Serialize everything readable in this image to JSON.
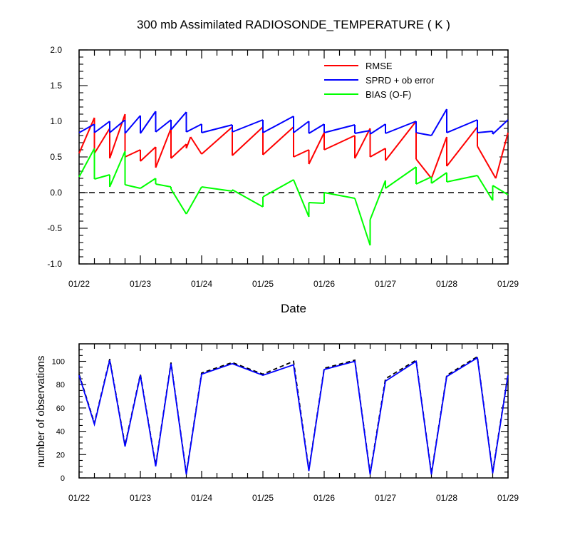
{
  "chart_data": [
    {
      "type": "line",
      "title": "300 mb Assimilated RADIOSONDE_TEMPERATURE ( K )",
      "xlabel": "Date",
      "ylabel": "",
      "ylim": [
        -1.0,
        2.0
      ],
      "xlim": [
        0,
        7
      ],
      "x_tick_labels": [
        "01/22",
        "01/23",
        "01/24",
        "01/25",
        "01/26",
        "01/27",
        "01/28",
        "01/29"
      ],
      "y_tick_labels": [
        "-1.0",
        "-0.5",
        "0.0",
        "0.5",
        "1.0",
        "1.5",
        "2.0"
      ],
      "legend_position": "top-right",
      "reference_line": {
        "y": 0,
        "style": "dashed"
      },
      "colors": {
        "rmse": "#ff0000",
        "sprd": "#0000ff",
        "bias": "#00ff00"
      },
      "series": [
        {
          "name": "RMSE",
          "color": "#ff0000",
          "points": [
            [
              0,
              0.55
            ],
            [
              0.25,
              0.8
            ],
            [
              0.25,
              0.5
            ],
            [
              0.5,
              0.9
            ],
            [
              0.5,
              0.48
            ],
            [
              0.75,
              0.8
            ],
            [
              0.75,
              0.5
            ],
            [
              1,
              0.6
            ],
            [
              1,
              0.44
            ],
            [
              1.25,
              0.5
            ],
            [
              1.25,
              0.35
            ],
            [
              1.5,
              0.6
            ],
            [
              1.5,
              0.5
            ],
            [
              1.75,
              0.65
            ],
            [
              1.75,
              0.5
            ],
            [
              2,
              0.55
            ],
            [
              2,
              0.55
            ],
            [
              2.5,
              0.52
            ],
            [
              2.5,
              0.52
            ],
            [
              3,
              0.53
            ],
            [
              3,
              0.53
            ],
            [
              3.5,
              0.52
            ],
            [
              3.5,
              0.52
            ],
            [
              3.75,
              0.4
            ],
            [
              3.75,
              0.4
            ],
            [
              4,
              0.6
            ],
            [
              4,
              0.6
            ],
            [
              4.5,
              0.5
            ],
            [
              4.5,
              0.5
            ],
            [
              4.75,
              0.5
            ],
            [
              4.75,
              0.5
            ],
            [
              5,
              0.45
            ],
            [
              5,
              0.45
            ],
            [
              5.5,
              0.48
            ],
            [
              5.5,
              0.48
            ],
            [
              5.75,
              0.2
            ],
            [
              5.75,
              0.2
            ],
            [
              6,
              0.38
            ],
            [
              6,
              0.38
            ],
            [
              6.5,
              0.65
            ],
            [
              6.5,
              0.65
            ],
            [
              6.75,
              0.2
            ],
            [
              6.75,
              0.2
            ],
            [
              7,
              0.85
            ]
          ],
          "segments": [
            [
              [
                0,
                0.55
              ],
              [
                0.25,
                1.05
              ]
            ],
            [
              [
                0.25,
                0.55
              ],
              [
                0.5,
                0.9
              ]
            ],
            [
              [
                0.5,
                0.48
              ],
              [
                0.75,
                1.1
              ]
            ],
            [
              [
                0.75,
                0.5
              ],
              [
                1,
                0.6
              ]
            ],
            [
              [
                1,
                0.44
              ],
              [
                1.25,
                0.64
              ]
            ],
            [
              [
                1.25,
                0.35
              ],
              [
                1.5,
                0.9
              ]
            ],
            [
              [
                1.5,
                0.48
              ],
              [
                1.75,
                0.68
              ]
            ],
            [
              [
                1.75,
                0.62
              ],
              [
                1.82,
                0.78
              ]
            ],
            [
              [
                2,
                0.54
              ],
              [
                2.5,
                0.92
              ]
            ],
            [
              [
                2.5,
                0.52
              ],
              [
                3,
                0.92
              ]
            ],
            [
              [
                3,
                0.53
              ],
              [
                3.5,
                0.92
              ]
            ],
            [
              [
                3.5,
                0.5
              ],
              [
                3.75,
                0.6
              ]
            ],
            [
              [
                3.75,
                0.4
              ],
              [
                4,
                0.84
              ]
            ],
            [
              [
                4,
                0.6
              ],
              [
                4.5,
                0.8
              ]
            ],
            [
              [
                4.5,
                0.48
              ],
              [
                4.75,
                0.9
              ]
            ],
            [
              [
                4.75,
                0.5
              ],
              [
                5,
                0.62
              ]
            ],
            [
              [
                5,
                0.45
              ],
              [
                5.5,
                1.0
              ]
            ],
            [
              [
                5.5,
                0.47
              ],
              [
                5.75,
                0.2
              ]
            ],
            [
              [
                5.75,
                0.2
              ],
              [
                6,
                0.78
              ]
            ],
            [
              [
                6,
                0.37
              ],
              [
                6.5,
                0.92
              ]
            ],
            [
              [
                6.5,
                0.65
              ],
              [
                6.8,
                0.2
              ]
            ],
            [
              [
                6.8,
                0.2
              ],
              [
                7,
                0.84
              ]
            ]
          ]
        },
        {
          "name": "SPRD + ob error",
          "color": "#0000ff",
          "segments": [
            [
              [
                0,
                0.84
              ],
              [
                0.25,
                0.96
              ]
            ],
            [
              [
                0.25,
                0.84
              ],
              [
                0.5,
                1.0
              ]
            ],
            [
              [
                0.5,
                0.84
              ],
              [
                0.75,
                1.02
              ]
            ],
            [
              [
                0.75,
                0.83
              ],
              [
                1,
                1.08
              ]
            ],
            [
              [
                1,
                0.83
              ],
              [
                1.25,
                1.14
              ]
            ],
            [
              [
                1.25,
                0.85
              ],
              [
                1.5,
                1.02
              ]
            ],
            [
              [
                1.5,
                0.88
              ],
              [
                1.75,
                1.13
              ]
            ],
            [
              [
                1.75,
                0.85
              ],
              [
                2,
                0.96
              ]
            ],
            [
              [
                2,
                0.84
              ],
              [
                2.5,
                0.95
              ]
            ],
            [
              [
                2.5,
                0.85
              ],
              [
                3,
                1.02
              ]
            ],
            [
              [
                3,
                0.84
              ],
              [
                3.5,
                1.07
              ]
            ],
            [
              [
                3.5,
                0.84
              ],
              [
                3.75,
                1.0
              ]
            ],
            [
              [
                3.75,
                0.83
              ],
              [
                4,
                0.96
              ]
            ],
            [
              [
                4,
                0.84
              ],
              [
                4.5,
                0.95
              ]
            ],
            [
              [
                4.5,
                0.83
              ],
              [
                4.75,
                0.87
              ]
            ],
            [
              [
                4.75,
                0.82
              ],
              [
                5,
                0.96
              ]
            ],
            [
              [
                5,
                0.83
              ],
              [
                5.5,
                1.0
              ]
            ],
            [
              [
                5.5,
                0.84
              ],
              [
                5.75,
                0.8
              ]
            ],
            [
              [
                5.75,
                0.8
              ],
              [
                6,
                1.17
              ]
            ],
            [
              [
                6,
                0.84
              ],
              [
                6.5,
                1.02
              ]
            ],
            [
              [
                6.5,
                0.84
              ],
              [
                6.75,
                0.86
              ]
            ],
            [
              [
                6.75,
                0.82
              ],
              [
                7,
                1.02
              ]
            ]
          ]
        },
        {
          "name": "BIAS (O-F)",
          "color": "#00ff00",
          "segments": [
            [
              [
                0,
                0.22
              ],
              [
                0.25,
                0.62
              ]
            ],
            [
              [
                0.25,
                0.19
              ],
              [
                0.5,
                0.25
              ]
            ],
            [
              [
                0.5,
                0.08
              ],
              [
                0.75,
                0.58
              ]
            ],
            [
              [
                0.75,
                0.11
              ],
              [
                1,
                0.06
              ]
            ],
            [
              [
                1,
                0.06
              ],
              [
                1.25,
                0.2
              ]
            ],
            [
              [
                1.25,
                0.12
              ],
              [
                1.5,
                0.08
              ]
            ],
            [
              [
                1.5,
                0.05
              ],
              [
                1.75,
                -0.3
              ]
            ],
            [
              [
                1.75,
                -0.3
              ],
              [
                2,
                0.08
              ]
            ],
            [
              [
                2,
                0.08
              ],
              [
                2.5,
                0.02
              ]
            ],
            [
              [
                2.5,
                0.04
              ],
              [
                3,
                -0.2
              ]
            ],
            [
              [
                3,
                -0.06
              ],
              [
                3.5,
                0.18
              ]
            ],
            [
              [
                3.5,
                0.18
              ],
              [
                3.75,
                -0.34
              ]
            ],
            [
              [
                3.75,
                -0.14
              ],
              [
                4,
                -0.15
              ]
            ],
            [
              [
                4,
                -0.0
              ],
              [
                4.5,
                -0.08
              ]
            ],
            [
              [
                4.5,
                -0.08
              ],
              [
                4.75,
                -0.74
              ]
            ],
            [
              [
                4.75,
                -0.38
              ],
              [
                5,
                0.17
              ]
            ],
            [
              [
                5,
                0.06
              ],
              [
                5.5,
                0.36
              ]
            ],
            [
              [
                5.5,
                0.12
              ],
              [
                5.75,
                0.22
              ]
            ],
            [
              [
                5.75,
                0.13
              ],
              [
                6,
                0.28
              ]
            ],
            [
              [
                6,
                0.15
              ],
              [
                6.5,
                0.24
              ]
            ],
            [
              [
                6.5,
                0.24
              ],
              [
                6.75,
                -0.11
              ]
            ],
            [
              [
                6.75,
                0.1
              ],
              [
                7,
                -0.03
              ]
            ]
          ]
        }
      ]
    },
    {
      "type": "line",
      "title": "",
      "xlabel": "",
      "ylabel": "number of observations",
      "ylim": [
        0,
        115
      ],
      "xlim": [
        0,
        7
      ],
      "x_tick_labels": [
        "01/22",
        "01/23",
        "01/24",
        "01/25",
        "01/26",
        "01/27",
        "01/28",
        "01/29"
      ],
      "y_tick_labels": [
        "0",
        "20",
        "40",
        "60",
        "80",
        "100"
      ],
      "series": [
        {
          "style": "dashed",
          "color": "#000000",
          "x": [
            0,
            0.25,
            0.5,
            0.75,
            1,
            1.25,
            1.5,
            1.75,
            2,
            2.5,
            3,
            3.5,
            3.75,
            4,
            4.5,
            4.75,
            5,
            5.5,
            5.75,
            6,
            6.5,
            6.75,
            7
          ],
          "values": [
            89,
            47,
            102,
            28,
            89,
            11,
            99,
            4,
            90,
            99,
            89,
            100,
            7,
            94,
            101,
            4,
            85,
            101,
            4,
            88,
            104,
            5,
            89
          ]
        },
        {
          "style": "solid",
          "color": "#0000ff",
          "x": [
            0,
            0.25,
            0.5,
            0.75,
            1,
            1.25,
            1.5,
            1.75,
            2,
            2.5,
            3,
            3.5,
            3.75,
            4,
            4.5,
            4.75,
            5,
            5.5,
            5.75,
            6,
            6.5,
            6.75,
            7
          ],
          "values": [
            88,
            46,
            101,
            27,
            88,
            10,
            98,
            3,
            89,
            98,
            88,
            97,
            6,
            93,
            100,
            3,
            83,
            100,
            3,
            87,
            103,
            4,
            88
          ]
        }
      ]
    }
  ]
}
